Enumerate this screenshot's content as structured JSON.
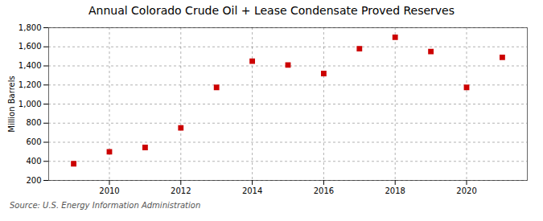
{
  "chart_data": {
    "type": "scatter",
    "title": "Annual Colorado Crude Oil + Lease Condensate Proved Reserves",
    "ylabel": "Million Barrels",
    "source": "Source: U.S. Energy Information Administration",
    "x": [
      2009,
      2010,
      2011,
      2012,
      2013,
      2014,
      2015,
      2016,
      2017,
      2018,
      2019,
      2020,
      2021
    ],
    "values": [
      375,
      500,
      545,
      750,
      1175,
      1450,
      1410,
      1320,
      1580,
      1700,
      1550,
      1175,
      1490
    ],
    "color": "#cc0000",
    "marker": "square",
    "xlim": [
      2008.3,
      2021.7
    ],
    "xticks": [
      2010,
      2012,
      2014,
      2016,
      2018,
      2020
    ],
    "ylim": [
      200,
      1800
    ],
    "yticks": [
      200,
      400,
      600,
      800,
      {
        "value": 1000,
        "label": "1,000"
      },
      {
        "value": 1200,
        "label": "1,200"
      },
      {
        "value": 1400,
        "label": "1,400"
      },
      {
        "value": 1600,
        "label": "1,600"
      },
      {
        "value": 1800,
        "label": "1,800"
      }
    ],
    "grid": true
  }
}
